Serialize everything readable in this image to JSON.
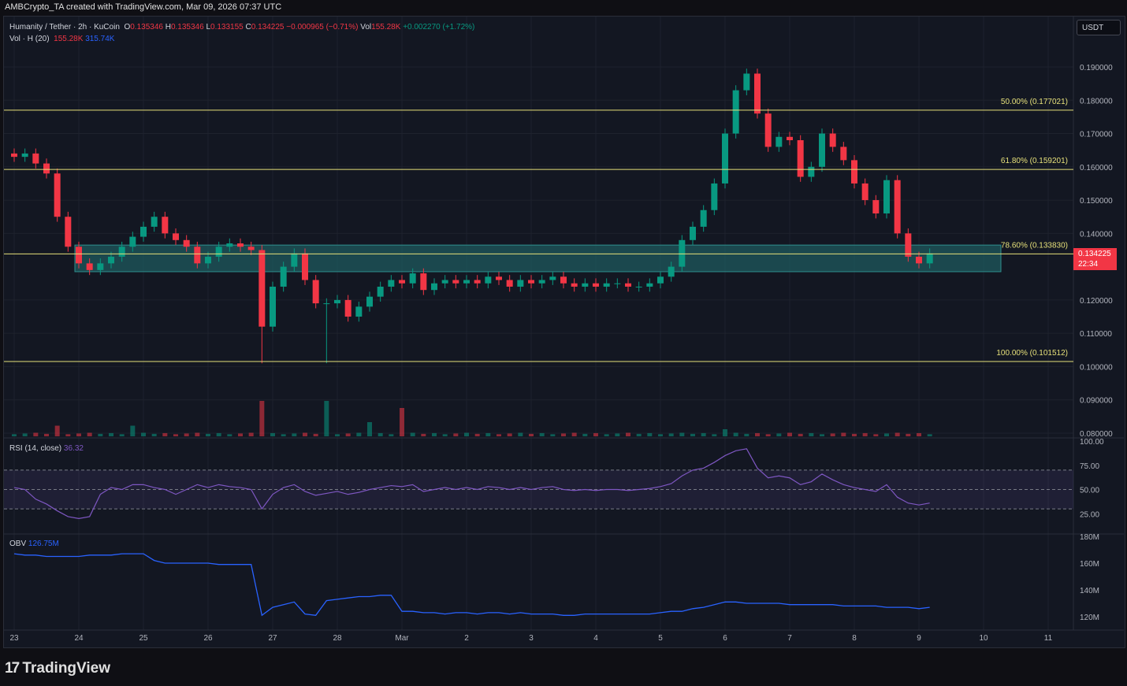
{
  "header": {
    "credit": "AMBCrypto_TA created with TradingView.com, Mar 09, 2026 07:37 UTC"
  },
  "legend": {
    "symbol": "Humanity / Tether · 2h · KuCoin",
    "o_label": "O",
    "o": "0.135346",
    "h_label": "H",
    "h": "0.135346",
    "l_label": "L",
    "l": "0.133155",
    "c_label": "C",
    "c": "0.134225",
    "change": "−0.000965 (−0.71%)",
    "vol_label": "Vol",
    "vol": "155.28K",
    "extra": "+0.002270 (+1.72%)",
    "vol_ind": "Vol · H (20)",
    "vol_val": "155.28K",
    "vol_ma": "315.74K"
  },
  "currency": "USDT",
  "last_price": {
    "value": "0.134225",
    "countdown": "22:34"
  },
  "rsi": {
    "label": "RSI (14, close)",
    "value": "36.32"
  },
  "obv": {
    "label": "OBV",
    "value": "126.75M"
  },
  "footer": {
    "brand": "TradingView"
  },
  "colors": {
    "up": "#089981",
    "down": "#f23645",
    "fib": "#e6e07a",
    "zone": "#1f5a5e",
    "rsi": "#7e57c2",
    "obv": "#2962ff"
  },
  "chart_data": {
    "type": "candlestick",
    "interval": "2h",
    "price_axis": {
      "ticks": [
        "0.190000",
        "0.180000",
        "0.170000",
        "0.160000",
        "0.150000",
        "0.140000",
        "0.120000",
        "0.110000",
        "0.100000",
        "0.090000",
        "0.080000"
      ],
      "range": [
        0.08,
        0.19
      ]
    },
    "time_axis": {
      "ticks": [
        "23",
        "24",
        "25",
        "26",
        "27",
        "28",
        "Mar",
        "2",
        "3",
        "4",
        "5",
        "6",
        "7",
        "8",
        "9",
        "10",
        "11"
      ]
    },
    "fib_levels": [
      {
        "label": "50.00% (0.177021)",
        "value": 0.177021
      },
      {
        "label": "61.80% (0.159201)",
        "value": 0.159201
      },
      {
        "label": "78.60% (0.133830)",
        "value": 0.13383
      },
      {
        "label": "100.00% (0.101512)",
        "value": 0.101512
      }
    ],
    "support_zone": [
      0.1285,
      0.1365
    ],
    "closes": [
      0.163,
      0.164,
      0.161,
      0.158,
      0.145,
      0.136,
      0.131,
      0.129,
      0.131,
      0.133,
      0.136,
      0.139,
      0.142,
      0.145,
      0.14,
      0.138,
      0.136,
      0.131,
      0.133,
      0.136,
      0.137,
      0.136,
      0.135,
      0.112,
      0.124,
      0.13,
      0.134,
      0.126,
      0.119,
      0.119,
      0.12,
      0.115,
      0.118,
      0.121,
      0.124,
      0.126,
      0.125,
      0.128,
      0.123,
      0.125,
      0.126,
      0.125,
      0.126,
      0.125,
      0.127,
      0.126,
      0.124,
      0.126,
      0.125,
      0.126,
      0.127,
      0.125,
      0.124,
      0.125,
      0.124,
      0.125,
      0.125,
      0.124,
      0.124,
      0.125,
      0.127,
      0.13,
      0.138,
      0.142,
      0.147,
      0.155,
      0.17,
      0.183,
      0.188,
      0.176,
      0.166,
      0.169,
      0.168,
      0.157,
      0.16,
      0.17,
      0.166,
      0.162,
      0.155,
      0.15,
      0.146,
      0.156,
      0.14,
      0.133,
      0.131,
      0.134
    ],
    "low_overrides": {
      "23": 0.101,
      "29": 0.101
    },
    "volume_spikes": {
      "4": 0.3,
      "11": 0.3,
      "23": 1,
      "29": 1,
      "33": 0.4,
      "36": 0.8,
      "66": 0.2
    },
    "rsi_axis": [
      "100.00",
      "75.00",
      "50.00",
      "25.00"
    ],
    "rsi_values": [
      52,
      50,
      40,
      35,
      28,
      22,
      20,
      22,
      45,
      52,
      50,
      55,
      55,
      52,
      50,
      45,
      50,
      55,
      52,
      55,
      53,
      52,
      50,
      30,
      45,
      52,
      55,
      48,
      44,
      46,
      48,
      45,
      47,
      50,
      52,
      54,
      53,
      55,
      48,
      50,
      52,
      50,
      52,
      50,
      53,
      52,
      50,
      52,
      50,
      52,
      53,
      50,
      49,
      50,
      49,
      50,
      50,
      49,
      50,
      51,
      53,
      56,
      64,
      70,
      72,
      78,
      85,
      90,
      92,
      72,
      62,
      64,
      62,
      55,
      58,
      66,
      60,
      55,
      52,
      50,
      48,
      55,
      42,
      36,
      34,
      36
    ],
    "obv_axis": [
      "180M",
      "160M",
      "140M",
      "120M"
    ],
    "obv_values": [
      167,
      166,
      166,
      165,
      165,
      165,
      165,
      166,
      166,
      166,
      167,
      167,
      167,
      162,
      160,
      160,
      160,
      160,
      160,
      159,
      159,
      159,
      159,
      121,
      127,
      129,
      131,
      122,
      121,
      132,
      133,
      134,
      135,
      135,
      136,
      136,
      124,
      124,
      123,
      123,
      122,
      123,
      123,
      122,
      123,
      123,
      122,
      123,
      122,
      122,
      122,
      121,
      121,
      122,
      122,
      122,
      122,
      122,
      122,
      122,
      123,
      124,
      124,
      126,
      127,
      129,
      131,
      131,
      130,
      130,
      130,
      130,
      129,
      129,
      129,
      129,
      129,
      128,
      128,
      128,
      128,
      127,
      127,
      127,
      126,
      127
    ]
  }
}
